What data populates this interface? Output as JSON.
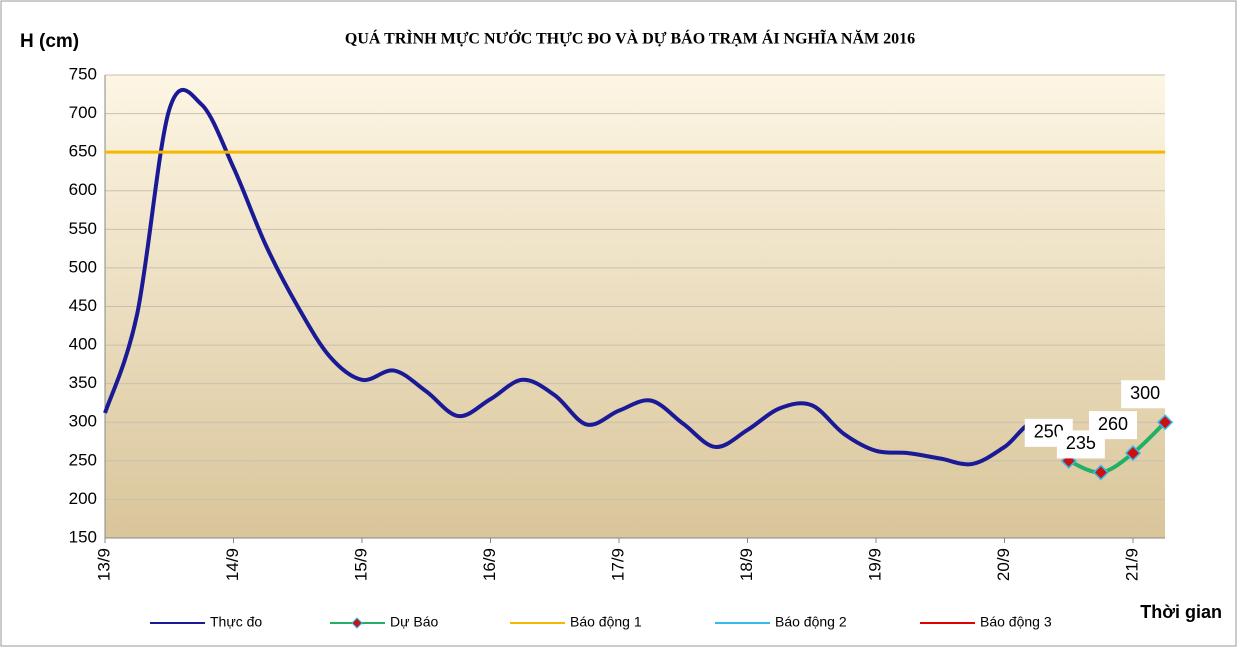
{
  "chart_data": {
    "type": "line",
    "title": "QUÁ TRÌNH MỰC NƯỚC THỰC ĐO VÀ DỰ BÁO TRẠM ÁI NGHĨA NĂM 2016",
    "y_label": "H (cm)",
    "x_label": "Thời gian",
    "categories": [
      "13/9",
      null,
      null,
      null,
      "14/9",
      null,
      null,
      null,
      "15/9",
      null,
      null,
      null,
      "16/9",
      null,
      null,
      null,
      "17/9",
      null,
      null,
      null,
      "18/9",
      null,
      null,
      null,
      "19/9",
      null,
      null,
      null,
      "20/9",
      null,
      null,
      null,
      "21/9",
      null
    ],
    "series": [
      {
        "name": "Thực đo",
        "color": "#1a1a96",
        "values": [
          312,
          440,
          705,
          712,
          630,
          530,
          450,
          385,
          355,
          367,
          340,
          308,
          330,
          355,
          335,
          297,
          315,
          328,
          298,
          268,
          290,
          318,
          322,
          285,
          263,
          260,
          253,
          246,
          268,
          300,
          250,
          null,
          null,
          null
        ]
      },
      {
        "name": "Dự Báo",
        "color": "#22b066",
        "marker_color": "#cc1111",
        "marker_edge": "#33bbee",
        "values": [
          null,
          null,
          null,
          null,
          null,
          null,
          null,
          null,
          null,
          null,
          null,
          null,
          null,
          null,
          null,
          null,
          null,
          null,
          null,
          null,
          null,
          null,
          null,
          null,
          null,
          null,
          null,
          null,
          null,
          null,
          250,
          235,
          260,
          300
        ]
      },
      {
        "name": "Báo động 1",
        "color": "#f5b800",
        "values": [
          650,
          650,
          650,
          650,
          650,
          650,
          650,
          650,
          650,
          650,
          650,
          650,
          650,
          650,
          650,
          650,
          650,
          650,
          650,
          650,
          650,
          650,
          650,
          650,
          650,
          650,
          650,
          650,
          650,
          650,
          650,
          650,
          650,
          650
        ]
      },
      {
        "name": "Báo động 2",
        "color": "#33bbee"
      },
      {
        "name": "Báo động 3",
        "color": "#e00000"
      }
    ],
    "ylim": [
      150,
      750
    ],
    "yticks": [
      150,
      200,
      250,
      300,
      350,
      400,
      450,
      500,
      550,
      600,
      650,
      700,
      750
    ],
    "grid": true
  }
}
